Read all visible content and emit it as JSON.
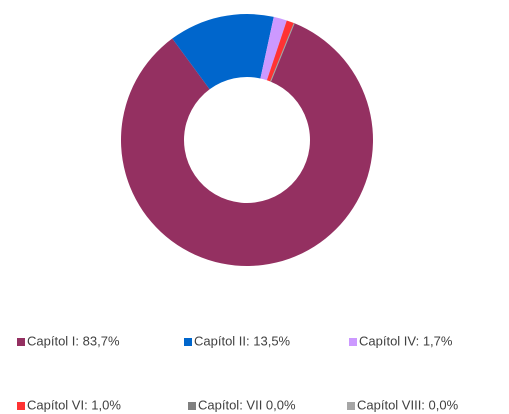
{
  "chart_data": {
    "type": "donut",
    "categories": [
      "Capítol I: 83,7%",
      "Capítol II: 13,5%",
      "Capítol IV: 1,7%",
      "Capítol VI: 1,0%",
      "Capítol: VII 0,0%",
      "Capítol VIII: 0,0%"
    ],
    "values": [
      83.7,
      13.5,
      1.7,
      1.0,
      0.0,
      0.0
    ],
    "colors": [
      "#943061",
      "#0066cc",
      "#cc99ff",
      "#ff3333",
      "#808080",
      "#a6a6a6"
    ],
    "legend": "bottom"
  }
}
